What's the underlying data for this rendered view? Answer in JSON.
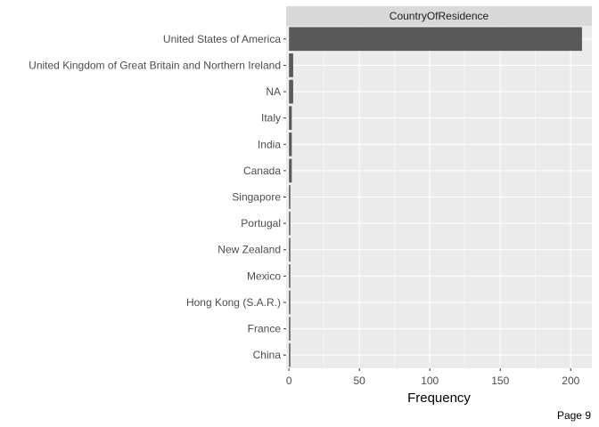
{
  "chart_data": {
    "type": "bar",
    "orientation": "horizontal",
    "facet_label": "CountryOfResidence",
    "xlabel": "Frequency",
    "ylabel": "",
    "xlim": [
      -2,
      215
    ],
    "x_ticks": [
      0,
      50,
      100,
      150,
      200
    ],
    "categories": [
      "United States of America",
      "United Kingdom of Great Britain and Northern Ireland",
      "NA",
      "Italy",
      "India",
      "Canada",
      "Singapore",
      "Portugal",
      "New Zealand",
      "Mexico",
      "Hong Kong (S.A.R.)",
      "France",
      "China"
    ],
    "values": [
      208,
      3,
      3,
      2,
      2,
      2,
      1,
      1,
      1,
      1,
      1,
      1,
      1
    ],
    "bar_color": "#595959",
    "panel_background": "#ebebeb",
    "strip_background": "#d9d9d9",
    "grid": true,
    "legend": "none"
  },
  "footer": {
    "page_label": "Page 9"
  }
}
